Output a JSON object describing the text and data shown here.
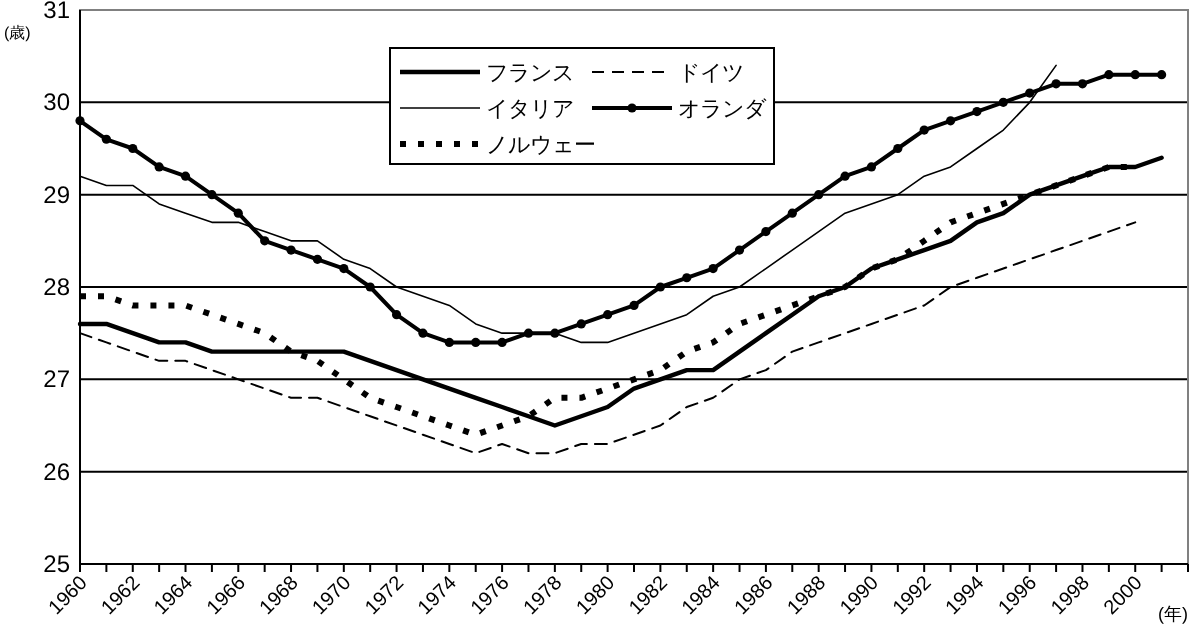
{
  "chart_data": {
    "type": "line",
    "ylabel": "(歳)",
    "xlabel": "(年)",
    "xlim": [
      1960,
      2002
    ],
    "ylim": [
      25,
      31
    ],
    "yticks": [
      25,
      26,
      27,
      28,
      29,
      30,
      31
    ],
    "xticks": [
      1960,
      {
        "value": 1961,
        "label": null
      },
      1962,
      {
        "value": 1963,
        "label": null
      },
      1964,
      {
        "value": 1965,
        "label": null
      },
      1966,
      {
        "value": 1967,
        "label": null
      },
      1968,
      {
        "value": 1969,
        "label": null
      },
      1970,
      {
        "value": 1971,
        "label": null
      },
      1972,
      {
        "value": 1973,
        "label": null
      },
      1974,
      {
        "value": 1975,
        "label": null
      },
      1976,
      {
        "value": 1977,
        "label": null
      },
      1978,
      {
        "value": 1979,
        "label": null
      },
      1980,
      {
        "value": 1981,
        "label": null
      },
      1982,
      {
        "value": 1983,
        "label": null
      },
      1984,
      {
        "value": 1985,
        "label": null
      },
      1986,
      {
        "value": 1987,
        "label": null
      },
      1988,
      {
        "value": 1989,
        "label": null
      },
      1990,
      {
        "value": 1991,
        "label": null
      },
      1992,
      {
        "value": 1993,
        "label": null
      },
      1994,
      {
        "value": 1995,
        "label": null
      },
      1996,
      {
        "value": 1997,
        "label": null
      },
      1998,
      {
        "value": 1999,
        "label": null
      },
      2000,
      {
        "value": 2001,
        "label": null
      },
      {
        "value": 2002,
        "label": null
      }
    ],
    "x": [
      1960,
      1961,
      1962,
      1963,
      1964,
      1965,
      1966,
      1967,
      1968,
      1969,
      1970,
      1971,
      1972,
      1973,
      1974,
      1975,
      1976,
      1977,
      1978,
      1979,
      1980,
      1981,
      1982,
      1983,
      1984,
      1985,
      1986,
      1987,
      1988,
      1989,
      1990,
      1991,
      1992,
      1993,
      1994,
      1995,
      1996,
      1997,
      1998,
      1999,
      2000,
      2001
    ],
    "grid": "y",
    "legend": "top",
    "marker": "none",
    "series": [
      {
        "name": "フランス",
        "color": "#000000",
        "line_style": "solid",
        "values": [
          27.6,
          27.6,
          27.5,
          27.4,
          27.4,
          27.3,
          27.3,
          27.3,
          27.3,
          27.3,
          27.3,
          27.2,
          27.1,
          27.0,
          26.9,
          26.8,
          26.7,
          26.6,
          26.5,
          26.6,
          26.7,
          26.9,
          27.0,
          27.1,
          27.1,
          27.3,
          27.5,
          27.7,
          27.9,
          28.0,
          28.2,
          28.3,
          28.4,
          28.5,
          28.7,
          28.8,
          29.0,
          29.1,
          29.2,
          29.3,
          29.3,
          29.4
        ]
      },
      {
        "name": "ドイツ",
        "color": "#000000",
        "line_style": "dashed",
        "values": [
          27.5,
          27.4,
          27.3,
          27.2,
          27.2,
          27.1,
          27.0,
          26.9,
          26.8,
          26.8,
          26.7,
          26.6,
          26.5,
          26.4,
          26.3,
          26.2,
          26.3,
          26.2,
          26.2,
          26.3,
          26.3,
          26.4,
          26.5,
          26.7,
          26.8,
          27.0,
          27.1,
          27.3,
          27.4,
          27.5,
          27.6,
          27.7,
          27.8,
          28.0,
          28.1,
          28.2,
          28.3,
          28.4,
          28.5,
          28.6,
          28.7,
          null
        ]
      },
      {
        "name": "イタリア",
        "color": "#000000",
        "line_style": "solid",
        "values": [
          29.2,
          29.1,
          29.1,
          28.9,
          28.8,
          28.7,
          28.7,
          28.6,
          28.5,
          28.5,
          28.3,
          28.2,
          28.0,
          27.9,
          27.8,
          27.6,
          27.5,
          27.5,
          27.5,
          27.4,
          27.4,
          27.5,
          27.6,
          27.7,
          27.9,
          28.0,
          28.2,
          28.4,
          28.6,
          28.8,
          28.9,
          29.0,
          29.2,
          29.3,
          29.5,
          29.7,
          30.0,
          30.4,
          null,
          null,
          null,
          null
        ]
      },
      {
        "name": "オランダ",
        "color": "#000000",
        "line_style": "solid",
        "marker": "circle",
        "values": [
          29.8,
          29.6,
          29.5,
          29.3,
          29.2,
          29.0,
          28.8,
          28.5,
          28.4,
          28.3,
          28.2,
          28.0,
          27.7,
          27.5,
          27.4,
          27.4,
          27.4,
          27.5,
          27.5,
          27.6,
          27.7,
          27.8,
          28.0,
          28.1,
          28.2,
          28.4,
          28.6,
          28.8,
          29.0,
          29.2,
          29.3,
          29.5,
          29.7,
          29.8,
          29.9,
          30.0,
          30.1,
          30.2,
          30.2,
          30.3,
          30.3,
          30.3
        ]
      },
      {
        "name": "ノルウェー",
        "color": "#000000",
        "line_style": "dotted",
        "values": [
          27.9,
          27.9,
          27.8,
          27.8,
          27.8,
          27.7,
          27.6,
          27.5,
          27.3,
          27.2,
          27.0,
          26.8,
          26.7,
          26.6,
          26.5,
          26.4,
          26.5,
          26.6,
          26.8,
          26.8,
          26.9,
          27.0,
          27.1,
          27.3,
          27.4,
          27.6,
          27.7,
          27.8,
          27.9,
          28.0,
          28.2,
          28.3,
          28.5,
          28.7,
          28.8,
          28.9,
          29.0,
          29.1,
          29.2,
          29.3,
          29.3,
          null
        ]
      }
    ]
  }
}
